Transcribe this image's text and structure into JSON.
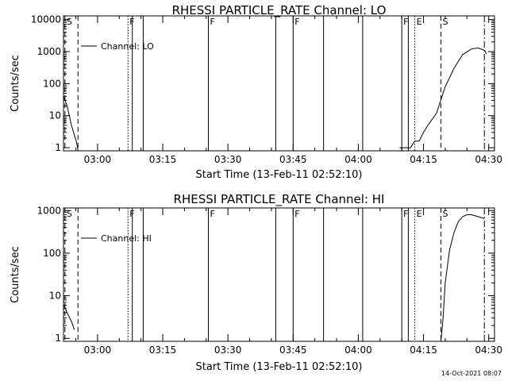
{
  "chart_data": [
    {
      "type": "line",
      "title": "RHESSI PARTICLE_RATE Channel: LO",
      "xlabel": "Start Time (13-Feb-11 02:52:10)",
      "ylabel": "Counts/sec",
      "yscale": "log",
      "ylim": [
        0.8,
        13000
      ],
      "xlim": [
        "02:52:10",
        "04:31:20"
      ],
      "yticks": [
        "1",
        "10",
        "100",
        "1000",
        "10000"
      ],
      "xticks": [
        "03:00",
        "03:15",
        "03:30",
        "03:45",
        "04:00",
        "04:15",
        "04:30"
      ],
      "legend": {
        "placement": "top-left",
        "entries": [
          "Channel: LO"
        ]
      },
      "series": [
        {
          "name": "Channel: LO",
          "x": [
            "02:52:10",
            "02:53:00",
            "02:54:00",
            "02:55:10",
            "02:55:30"
          ],
          "y": [
            40,
            20,
            5,
            1.5,
            0.8
          ]
        },
        {
          "name": "Channel: LO",
          "x": [
            "04:09:30",
            "04:12:00",
            "04:13:00",
            "04:14:00",
            "04:15:00",
            "04:16:00",
            "04:18:00",
            "04:20:00",
            "04:22:00",
            "04:24:00",
            "04:26:00",
            "04:27:30",
            "04:29:00",
            "04:29:30"
          ],
          "y": [
            1,
            1,
            1.6,
            1.6,
            3,
            5,
            12,
            80,
            300,
            800,
            1200,
            1300,
            1100,
            850
          ]
        }
      ],
      "markers": [
        {
          "label": "S",
          "time": "02:52:30",
          "style": "dashed"
        },
        {
          "label": "",
          "time": "02:55:30",
          "style": "dashed"
        },
        {
          "label": "F",
          "time": "03:07:00",
          "style": "dotted"
        },
        {
          "label": "",
          "time": "03:08:00",
          "style": "solid"
        },
        {
          "label": "",
          "time": "03:10:30",
          "style": "solid"
        },
        {
          "label": "F",
          "time": "03:25:30",
          "style": "solid"
        },
        {
          "label": "",
          "time": "03:41:00",
          "style": "solid"
        },
        {
          "label": "F",
          "time": "03:45:00",
          "style": "solid"
        },
        {
          "label": "",
          "time": "03:52:00",
          "style": "solid"
        },
        {
          "label": "",
          "time": "04:01:00",
          "style": "solid"
        },
        {
          "label": "F",
          "time": "04:10:00",
          "style": "solid"
        },
        {
          "label": "",
          "time": "04:11:30",
          "style": "solid"
        },
        {
          "label": "E",
          "time": "04:13:00",
          "style": "dotted"
        },
        {
          "label": "S",
          "time": "04:19:00",
          "style": "dashed"
        },
        {
          "label": "",
          "time": "04:29:00",
          "style": "dash-dot"
        }
      ]
    },
    {
      "type": "line",
      "title": "RHESSI PARTICLE_RATE Channel: HI",
      "xlabel": "Start Time (13-Feb-11 02:52:10)",
      "ylabel": "Counts/sec",
      "yscale": "log",
      "ylim": [
        0.85,
        1150
      ],
      "xlim": [
        "02:52:10",
        "04:31:20"
      ],
      "yticks": [
        "1",
        "10",
        "100",
        "1000"
      ],
      "xticks": [
        "03:00",
        "03:15",
        "03:30",
        "03:45",
        "04:00",
        "04:15",
        "04:30"
      ],
      "legend": {
        "placement": "top-left",
        "entries": [
          "Channel: HI"
        ]
      },
      "series": [
        {
          "name": "Channel: HI",
          "x": [
            "02:52:10",
            "02:53:00",
            "02:54:00",
            "02:54:40"
          ],
          "y": [
            6,
            4,
            2.5,
            1.6
          ]
        },
        {
          "name": "Channel: HI",
          "x": [
            "04:19:00",
            "04:19:30",
            "04:20:00",
            "04:21:00",
            "04:22:00",
            "04:23:00",
            "04:24:00",
            "04:25:00",
            "04:26:00",
            "04:27:00",
            "04:28:00",
            "04:29:00"
          ],
          "y": [
            0.85,
            3,
            20,
            120,
            300,
            550,
            720,
            800,
            800,
            750,
            700,
            650
          ]
        }
      ],
      "markers": [
        {
          "label": "S",
          "time": "02:52:30",
          "style": "dashed"
        },
        {
          "label": "",
          "time": "02:55:30",
          "style": "dashed"
        },
        {
          "label": "F",
          "time": "03:07:00",
          "style": "dotted"
        },
        {
          "label": "",
          "time": "03:08:00",
          "style": "solid"
        },
        {
          "label": "",
          "time": "03:10:30",
          "style": "solid"
        },
        {
          "label": "F",
          "time": "03:25:30",
          "style": "solid"
        },
        {
          "label": "",
          "time": "03:41:00",
          "style": "solid"
        },
        {
          "label": "F",
          "time": "03:45:00",
          "style": "solid"
        },
        {
          "label": "",
          "time": "03:52:00",
          "style": "solid"
        },
        {
          "label": "",
          "time": "04:01:00",
          "style": "solid"
        },
        {
          "label": "F",
          "time": "04:10:00",
          "style": "solid"
        },
        {
          "label": "",
          "time": "04:11:30",
          "style": "solid"
        },
        {
          "label": "E",
          "time": "04:13:00",
          "style": "dotted"
        },
        {
          "label": "S",
          "time": "04:19:00",
          "style": "dashed"
        },
        {
          "label": "",
          "time": "04:29:00",
          "style": "dash-dot"
        }
      ]
    }
  ],
  "footer": {
    "timestamp": "14-Oct-2021 08:07"
  }
}
